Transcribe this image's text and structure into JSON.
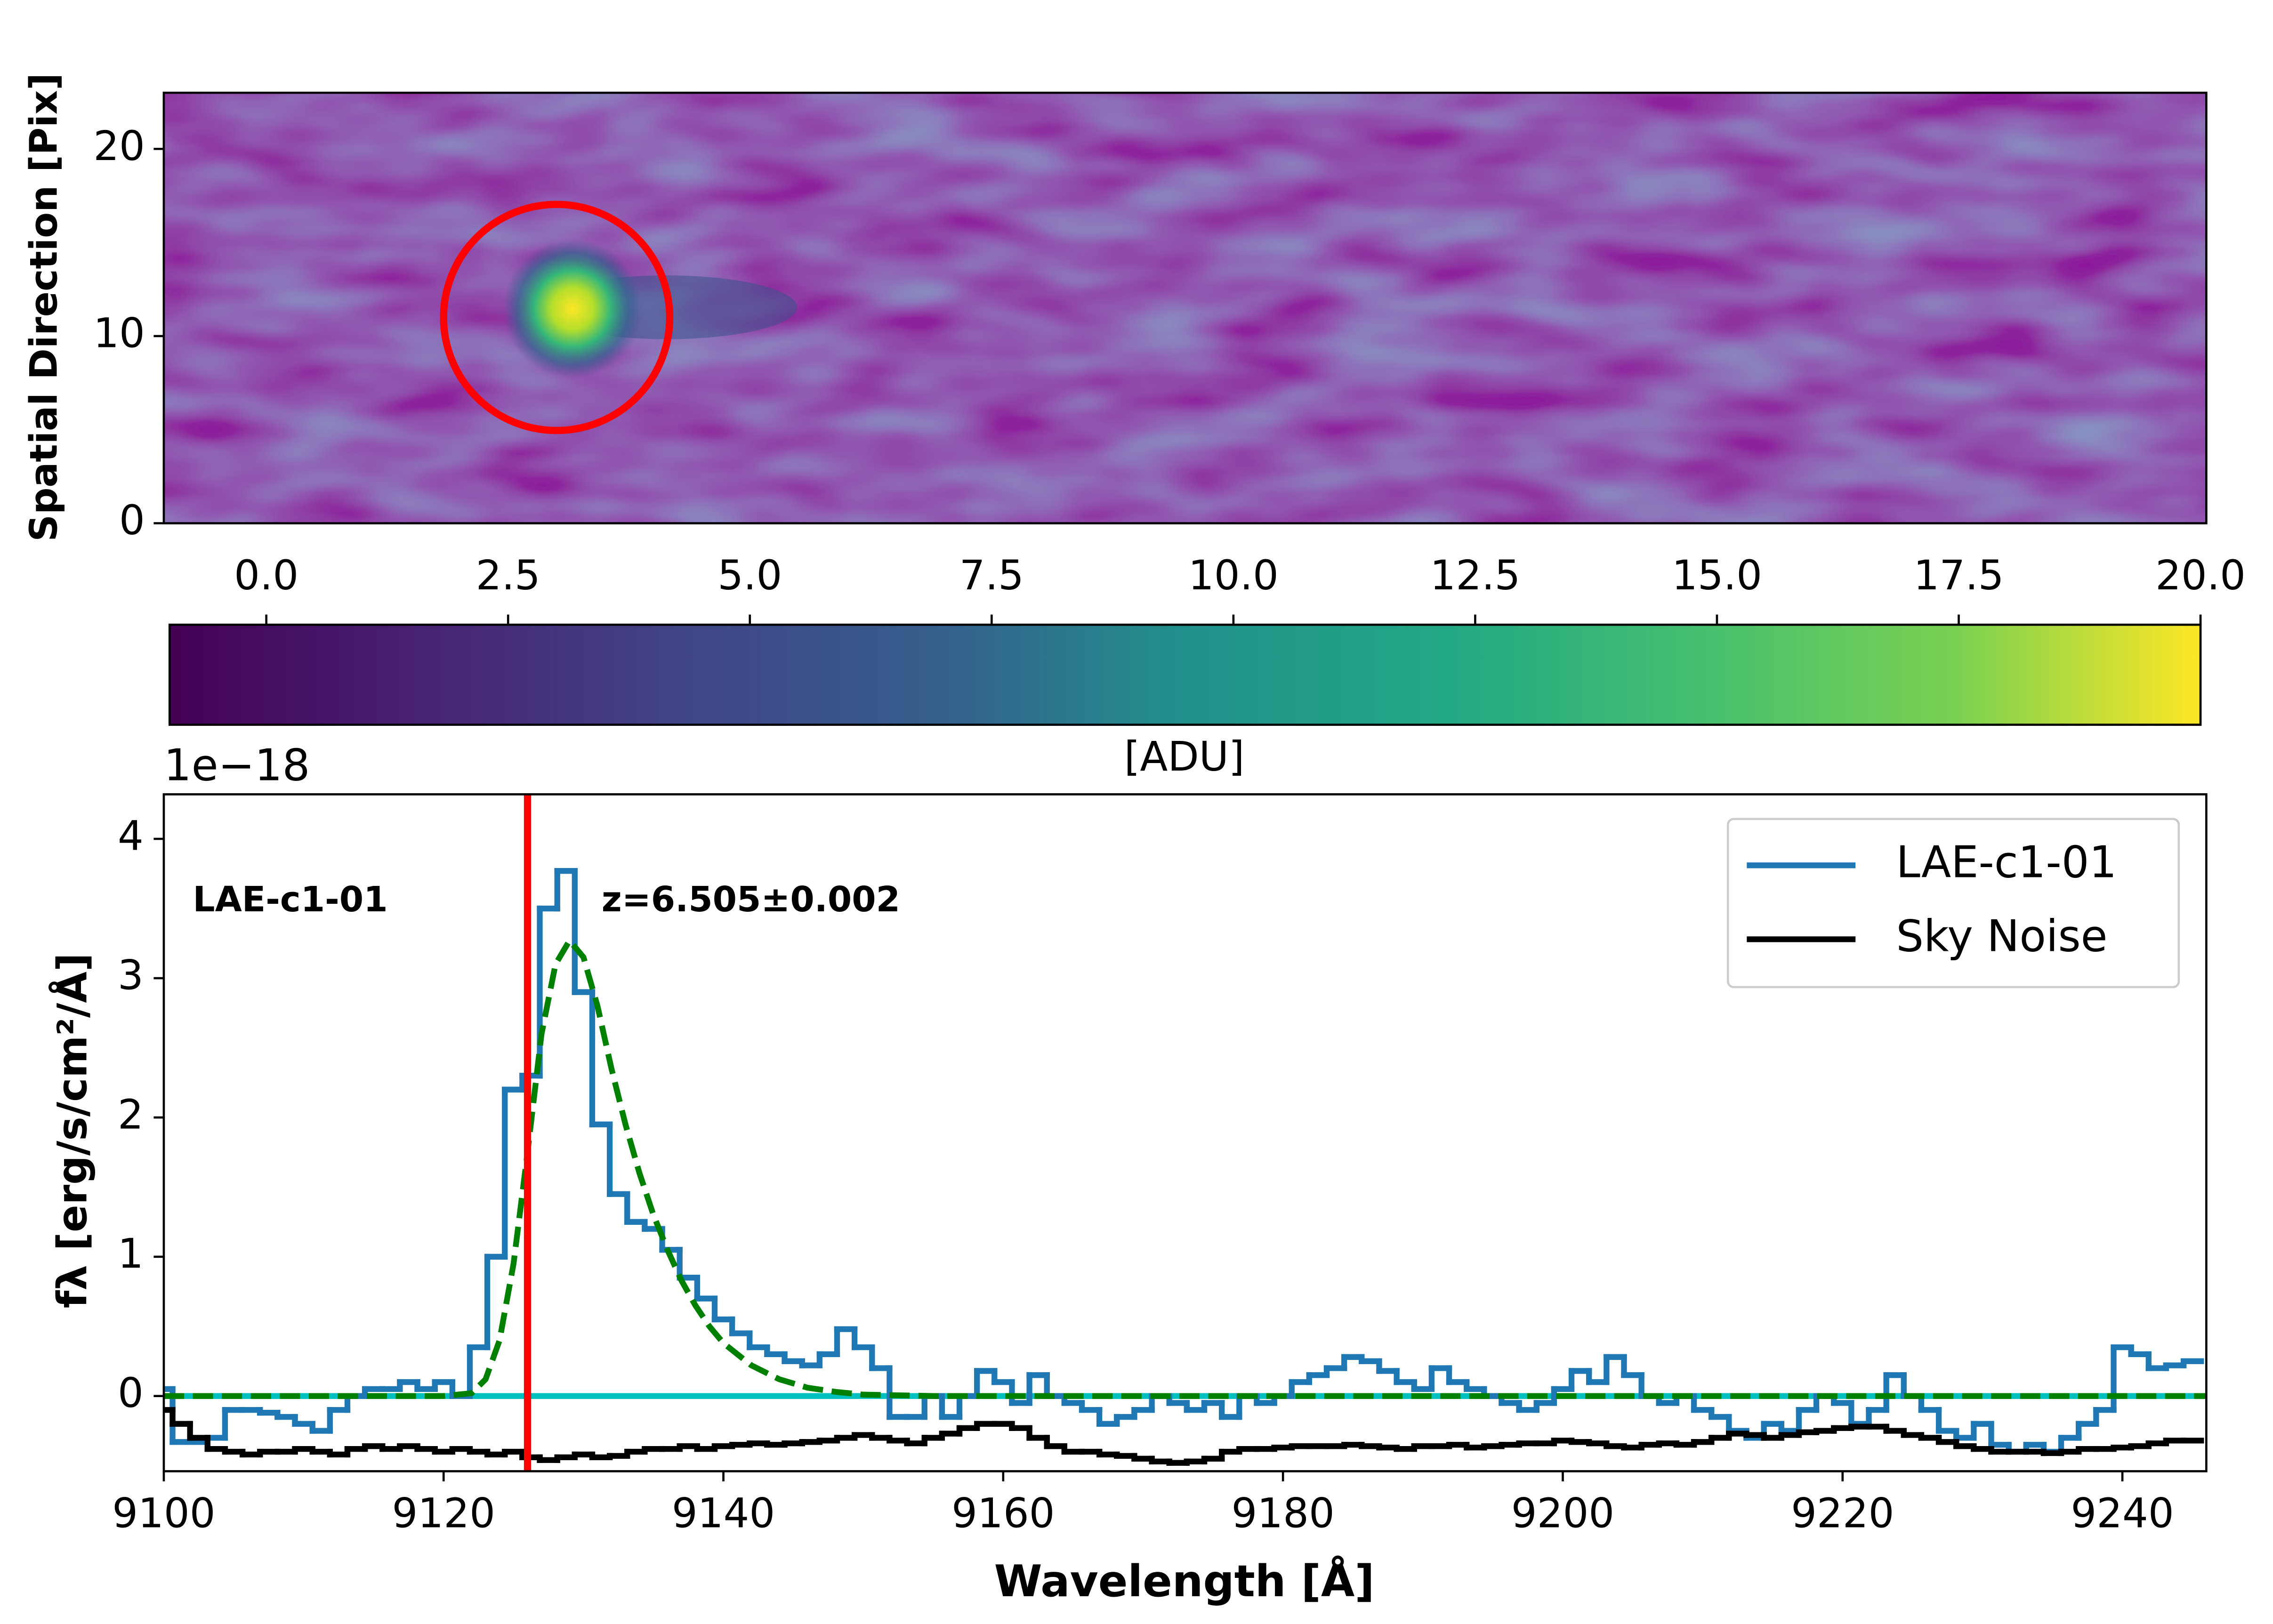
{
  "chart_data": [
    {
      "type": "image",
      "ylabel": "Spatial Direction [Pix]",
      "ylim": [
        0,
        23
      ],
      "yticks": [
        0,
        10,
        20
      ]
    },
    {
      "type": "colorbar",
      "label": "[ADU]",
      "xlim": [
        -1,
        20
      ],
      "xticks": [
        {
          "value": 0,
          "label": "0.0"
        },
        {
          "value": 2.5,
          "label": "2.5"
        },
        {
          "value": 5,
          "label": "5.0"
        },
        {
          "value": 7.5,
          "label": "7.5"
        },
        {
          "value": 10,
          "label": "10.0"
        },
        {
          "value": 12.5,
          "label": "12.5"
        },
        {
          "value": 15,
          "label": "15.0"
        },
        {
          "value": 17.5,
          "label": "17.5"
        },
        {
          "value": 20,
          "label": "20.0"
        }
      ]
    },
    {
      "type": "step",
      "xlabel": "Wavelength [Å]",
      "ylabel": "fλ  [erg/s/cm²/Å]",
      "offset_text": "1e−18",
      "annotations": [
        "LAE-c1-01",
        "z=6.505±0.002"
      ],
      "xlim": [
        9100,
        9246
      ],
      "xticks": [
        9100,
        9120,
        9140,
        9160,
        9180,
        9200,
        9220,
        9240
      ],
      "ylim": [
        -0.54,
        4.32
      ],
      "yticks": [
        0,
        1,
        2,
        3,
        4
      ],
      "legend": "upper right",
      "vline": 9126,
      "vline_color": "#ff0000",
      "hline": 0,
      "hline_color": "#00bfbf",
      "x": [
        9100,
        9101.25,
        9102.5,
        9103.75,
        9105,
        9106.25,
        9107.5,
        9108.75,
        9110,
        9111.25,
        9112.5,
        9113.75,
        9115,
        9116.25,
        9117.5,
        9118.75,
        9120,
        9121.25,
        9122.5,
        9123.75,
        9125,
        9126.25,
        9127.5,
        9128.75,
        9130,
        9131.25,
        9132.5,
        9133.75,
        9135,
        9136.25,
        9137.5,
        9138.75,
        9140,
        9141.25,
        9142.5,
        9143.75,
        9145,
        9146.25,
        9147.5,
        9148.75,
        9150,
        9151.25,
        9152.5,
        9153.75,
        9155,
        9156.25,
        9157.5,
        9158.75,
        9160,
        9161.25,
        9162.5,
        9163.75,
        9165,
        9166.25,
        9167.5,
        9168.75,
        9170,
        9171.25,
        9172.5,
        9173.75,
        9175,
        9176.25,
        9177.5,
        9178.75,
        9180,
        9181.25,
        9182.5,
        9183.75,
        9185,
        9186.25,
        9187.5,
        9188.75,
        9190,
        9191.25,
        9192.5,
        9193.75,
        9195,
        9196.25,
        9197.5,
        9198.75,
        9200,
        9201.25,
        9202.5,
        9203.75,
        9205,
        9206.25,
        9207.5,
        9208.75,
        9210,
        9211.25,
        9212.5,
        9213.75,
        9215,
        9216.25,
        9217.5,
        9218.75,
        9220,
        9221.25,
        9222.5,
        9223.75,
        9225,
        9226.25,
        9227.5,
        9228.75,
        9230,
        9231.25,
        9232.5,
        9233.75,
        9235,
        9236.25,
        9237.5,
        9238.75,
        9240,
        9241.25,
        9242.5,
        9243.75,
        9245
      ],
      "series": [
        {
          "name": "LAE-c1-01",
          "color": "#1f77b4",
          "values": [
            0.05,
            -0.33,
            -0.33,
            -0.3,
            -0.1,
            -0.1,
            -0.12,
            -0.15,
            -0.2,
            -0.25,
            -0.1,
            0,
            0.05,
            0.05,
            0.1,
            0.05,
            0.1,
            0,
            0.35,
            1,
            2.2,
            2.3,
            3.5,
            3.77,
            2.9,
            1.95,
            1.45,
            1.25,
            1.2,
            1.05,
            0.85,
            0.7,
            0.55,
            0.45,
            0.35,
            0.3,
            0.25,
            0.22,
            0.3,
            0.48,
            0.35,
            0.2,
            -0.15,
            -0.15,
            0,
            -0.15,
            0,
            0.18,
            0.1,
            -0.05,
            0.15,
            0,
            -0.05,
            -0.1,
            -0.2,
            -0.15,
            -0.1,
            0,
            -0.05,
            -0.1,
            -0.05,
            -0.15,
            0,
            -0.05,
            0,
            0.1,
            0.15,
            0.2,
            0.28,
            0.25,
            0.18,
            0.1,
            0.05,
            0.2,
            0.1,
            0.05,
            0,
            -0.05,
            -0.1,
            -0.05,
            0.05,
            0.18,
            0.1,
            0.28,
            0.15,
            0,
            -0.05,
            0,
            -0.1,
            -0.15,
            -0.25,
            -0.3,
            -0.2,
            -0.25,
            -0.1,
            0,
            -0.05,
            -0.2,
            -0.1,
            0.15,
            0,
            -0.1,
            -0.25,
            -0.3,
            -0.2,
            -0.35,
            -0.4,
            -0.35,
            -0.4,
            -0.3,
            -0.2,
            -0.1,
            0.35,
            0.3,
            0.2,
            0.22,
            0.25
          ]
        },
        {
          "name": "Sky Noise",
          "color": "#000000",
          "values": [
            -0.1,
            -0.2,
            -0.3,
            -0.38,
            -0.4,
            -0.42,
            -0.4,
            -0.4,
            -0.38,
            -0.4,
            -0.42,
            -0.38,
            -0.36,
            -0.38,
            -0.36,
            -0.38,
            -0.4,
            -0.38,
            -0.4,
            -0.42,
            -0.4,
            -0.44,
            -0.46,
            -0.44,
            -0.42,
            -0.44,
            -0.43,
            -0.4,
            -0.38,
            -0.38,
            -0.36,
            -0.38,
            -0.36,
            -0.35,
            -0.34,
            -0.35,
            -0.34,
            -0.33,
            -0.32,
            -0.3,
            -0.28,
            -0.3,
            -0.32,
            -0.34,
            -0.3,
            -0.27,
            -0.23,
            -0.2,
            -0.2,
            -0.23,
            -0.3,
            -0.36,
            -0.4,
            -0.4,
            -0.42,
            -0.43,
            -0.45,
            -0.47,
            -0.48,
            -0.47,
            -0.45,
            -0.4,
            -0.38,
            -0.38,
            -0.37,
            -0.36,
            -0.36,
            -0.36,
            -0.35,
            -0.36,
            -0.37,
            -0.38,
            -0.36,
            -0.36,
            -0.35,
            -0.37,
            -0.36,
            -0.35,
            -0.34,
            -0.34,
            -0.32,
            -0.33,
            -0.34,
            -0.36,
            -0.37,
            -0.35,
            -0.34,
            -0.35,
            -0.33,
            -0.3,
            -0.27,
            -0.28,
            -0.3,
            -0.28,
            -0.26,
            -0.25,
            -0.23,
            -0.22,
            -0.22,
            -0.25,
            -0.28,
            -0.3,
            -0.33,
            -0.36,
            -0.38,
            -0.4,
            -0.4,
            -0.4,
            -0.41,
            -0.4,
            -0.38,
            -0.38,
            -0.37,
            -0.36,
            -0.34,
            -0.32,
            -0.32
          ]
        }
      ],
      "fit": {
        "color": "#008000",
        "dashed": true,
        "x": [
          9100,
          9120,
          9122,
          9123,
          9124,
          9125,
          9126,
          9127,
          9128,
          9129,
          9130,
          9131,
          9132,
          9133,
          9134,
          9135,
          9136,
          9137,
          9138,
          9139,
          9140,
          9142,
          9144,
          9146,
          9148,
          9150,
          9155,
          9246
        ],
        "values": [
          0,
          0,
          0.02,
          0.12,
          0.4,
          0.95,
          1.75,
          2.6,
          3.1,
          3.27,
          3.15,
          2.8,
          2.35,
          1.95,
          1.6,
          1.3,
          1.05,
          0.83,
          0.65,
          0.5,
          0.38,
          0.22,
          0.12,
          0.06,
          0.03,
          0.01,
          0,
          0
        ]
      }
    }
  ]
}
